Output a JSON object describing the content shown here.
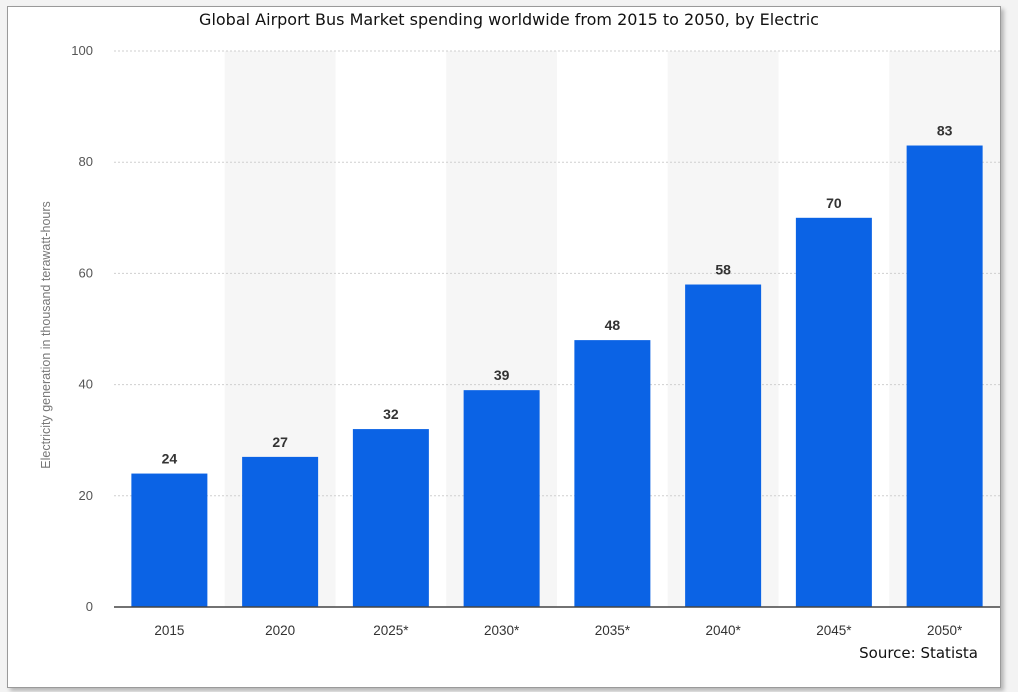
{
  "chart_data": {
    "type": "bar",
    "title": "Global Airport Bus Market spending worldwide from 2015 to 2050, by Electric",
    "xlabel": "",
    "ylabel": "Electricity generation in thousand terawatt-hours",
    "categories": [
      "2015",
      "2020",
      "2025*",
      "2030*",
      "2035*",
      "2040*",
      "2045*",
      "2050*"
    ],
    "values": [
      24,
      27,
      32,
      39,
      48,
      58,
      70,
      83
    ],
    "data_labels": [
      "24",
      "27",
      "32",
      "39",
      "48",
      "58",
      "70",
      "83"
    ],
    "ylim": [
      0,
      100
    ],
    "yticks": [
      0,
      20,
      40,
      60,
      80,
      100
    ],
    "grid": true,
    "legend": "none",
    "bar_color": "#0b63e5",
    "source": "Source: Statista"
  }
}
